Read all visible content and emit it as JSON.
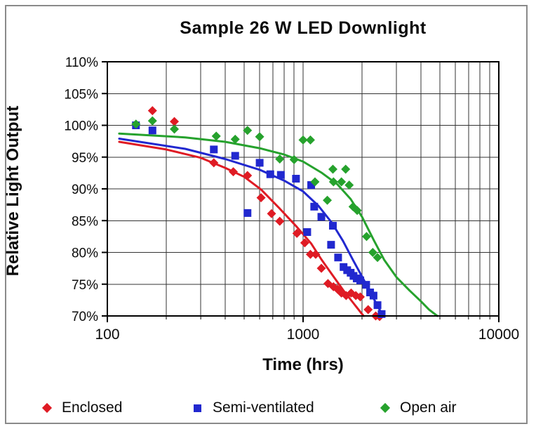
{
  "chart_data": {
    "type": "scatter",
    "title": "Sample 26 W LED Downlight",
    "xlabel": "Time (hrs)",
    "ylabel": "Relative Light Output",
    "x_scale": "log",
    "xlim": [
      100,
      10000
    ],
    "ylim": [
      70,
      110
    ],
    "grid": "on",
    "legend_position": "bottom",
    "x_ticks": [
      {
        "value": 100,
        "label": "100"
      },
      {
        "value": 1000,
        "label": "1000"
      },
      {
        "value": 10000,
        "label": "10000"
      }
    ],
    "y_ticks": [
      {
        "value": 110,
        "label": "110%"
      },
      {
        "value": 105,
        "label": "105%"
      },
      {
        "value": 100,
        "label": "100%"
      },
      {
        "value": 95,
        "label": "95%"
      },
      {
        "value": 90,
        "label": "90%"
      },
      {
        "value": 85,
        "label": "85%"
      },
      {
        "value": 80,
        "label": "80%"
      },
      {
        "value": 75,
        "label": "75%"
      },
      {
        "value": 70,
        "label": "70%"
      }
    ],
    "colors": {
      "enclosed": "#df1b24",
      "semi_ventilated": "#2128cf",
      "open_air": "#26a22d",
      "grid": "#333333",
      "axis": "#000000"
    },
    "series": [
      {
        "name": "Enclosed",
        "marker": "diamond",
        "color": "#df1b24",
        "points": [
          [
            170,
            102.3
          ],
          [
            220,
            100.6
          ],
          [
            350,
            94.1
          ],
          [
            440,
            92.7
          ],
          [
            520,
            92.1
          ],
          [
            610,
            88.6
          ],
          [
            690,
            86.1
          ],
          [
            760,
            84.9
          ],
          [
            930,
            83.0
          ],
          [
            1020,
            81.5
          ],
          [
            1090,
            79.7
          ],
          [
            1160,
            79.7
          ],
          [
            1240,
            77.5
          ],
          [
            1340,
            75.1
          ],
          [
            1430,
            74.6
          ],
          [
            1500,
            74.2
          ],
          [
            1570,
            73.6
          ],
          [
            1660,
            73.2
          ],
          [
            1760,
            73.6
          ],
          [
            1860,
            73.2
          ],
          [
            1960,
            73.0
          ],
          [
            2150,
            71.0
          ],
          [
            2350,
            70.0
          ],
          [
            2460,
            69.9
          ]
        ],
        "trend": [
          [
            115,
            97.4
          ],
          [
            200,
            96.2
          ],
          [
            300,
            94.9
          ],
          [
            400,
            93.3
          ],
          [
            500,
            91.9
          ],
          [
            610,
            89.9
          ],
          [
            760,
            86.9
          ],
          [
            930,
            84.0
          ],
          [
            1100,
            81.4
          ],
          [
            1240,
            78.9
          ],
          [
            1400,
            76.6
          ],
          [
            1600,
            74.1
          ],
          [
            1800,
            72.1
          ],
          [
            2000,
            70.3
          ],
          [
            2040,
            70.0
          ]
        ]
      },
      {
        "name": "Semi-ventilated",
        "marker": "square",
        "color": "#2128cf",
        "points": [
          [
            140,
            100.0
          ],
          [
            170,
            99.2
          ],
          [
            350,
            96.2
          ],
          [
            450,
            95.2
          ],
          [
            520,
            86.2
          ],
          [
            600,
            94.1
          ],
          [
            680,
            92.3
          ],
          [
            770,
            92.2
          ],
          [
            920,
            91.6
          ],
          [
            1050,
            83.2
          ],
          [
            1100,
            90.6
          ],
          [
            1140,
            87.2
          ],
          [
            1240,
            85.6
          ],
          [
            1390,
            81.2
          ],
          [
            1420,
            84.2
          ],
          [
            1510,
            79.2
          ],
          [
            1610,
            77.7
          ],
          [
            1680,
            77.2
          ],
          [
            1750,
            76.8
          ],
          [
            1810,
            76.3
          ],
          [
            1880,
            75.9
          ],
          [
            1960,
            75.6
          ],
          [
            2100,
            74.9
          ],
          [
            2200,
            73.7
          ],
          [
            2290,
            73.2
          ],
          [
            2400,
            71.7
          ],
          [
            2520,
            70.3
          ]
        ],
        "trend": [
          [
            115,
            97.9
          ],
          [
            250,
            96.3
          ],
          [
            400,
            94.7
          ],
          [
            600,
            93.0
          ],
          [
            800,
            91.3
          ],
          [
            1000,
            89.6
          ],
          [
            1200,
            87.3
          ],
          [
            1400,
            84.7
          ],
          [
            1600,
            81.8
          ],
          [
            1800,
            78.8
          ],
          [
            2000,
            76.2
          ],
          [
            2200,
            73.8
          ],
          [
            2400,
            71.6
          ],
          [
            2560,
            70.0
          ]
        ]
      },
      {
        "name": "Open air",
        "marker": "diamond",
        "color": "#26a22d",
        "points": [
          [
            140,
            100.2
          ],
          [
            170,
            100.7
          ],
          [
            220,
            99.4
          ],
          [
            360,
            98.3
          ],
          [
            450,
            97.8
          ],
          [
            520,
            99.2
          ],
          [
            600,
            98.2
          ],
          [
            760,
            94.7
          ],
          [
            900,
            94.6
          ],
          [
            1000,
            97.7
          ],
          [
            1090,
            97.7
          ],
          [
            1150,
            91.1
          ],
          [
            1330,
            88.2
          ],
          [
            1420,
            93.1
          ],
          [
            1430,
            91.1
          ],
          [
            1570,
            91.1
          ],
          [
            1650,
            93.1
          ],
          [
            1720,
            90.6
          ],
          [
            1800,
            87.2
          ],
          [
            1890,
            86.6
          ],
          [
            2110,
            82.5
          ],
          [
            2270,
            80.0
          ],
          [
            2400,
            79.2
          ]
        ],
        "trend": [
          [
            115,
            98.7
          ],
          [
            250,
            98.1
          ],
          [
            400,
            97.4
          ],
          [
            600,
            96.4
          ],
          [
            800,
            95.4
          ],
          [
            1000,
            94.3
          ],
          [
            1250,
            92.5
          ],
          [
            1500,
            90.7
          ],
          [
            1750,
            88.4
          ],
          [
            2000,
            85.6
          ],
          [
            2300,
            81.9
          ],
          [
            2600,
            78.8
          ],
          [
            3000,
            76.1
          ],
          [
            3500,
            74.0
          ],
          [
            4000,
            72.3
          ],
          [
            4400,
            71.0
          ],
          [
            4850,
            70.0
          ]
        ]
      }
    ]
  }
}
